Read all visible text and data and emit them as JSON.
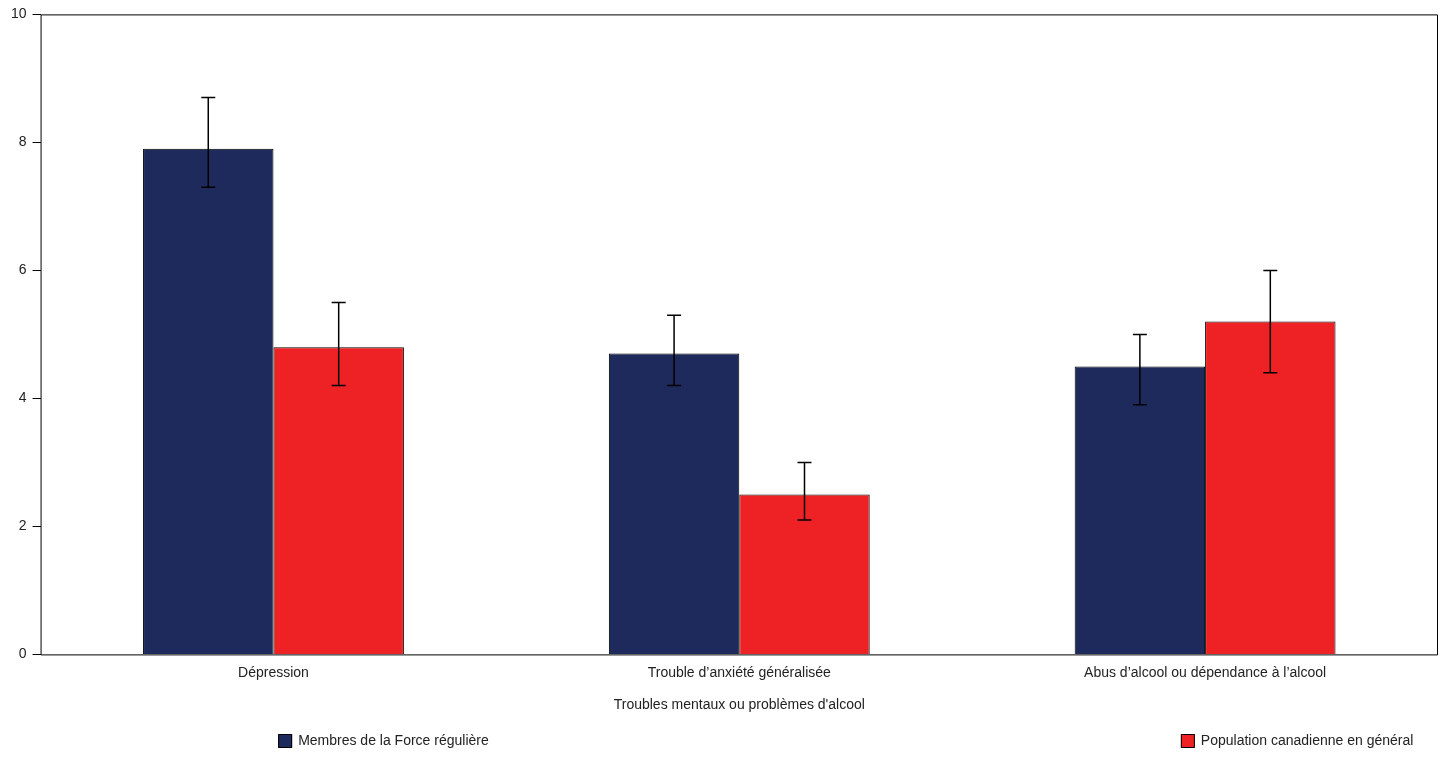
{
  "chart_data": {
    "type": "bar",
    "xlabel": "Troubles mentaux ou problèmes d'alcool",
    "categories": [
      "Dépression",
      "Trouble d’anxiété généralisée",
      "Abus d’alcool ou dépendance à l’alcool"
    ],
    "series": [
      {
        "name": "Membres de la Force régulière",
        "color": "#1f2a5c",
        "values": [
          7.9,
          4.7,
          4.5
        ],
        "errors": [
          [
            7.3,
            8.7
          ],
          [
            4.2,
            5.3
          ],
          [
            3.9,
            5.0
          ]
        ]
      },
      {
        "name": "Population canadienne en général",
        "color": "#ee2224",
        "values": [
          4.8,
          2.5,
          5.2
        ],
        "errors": [
          [
            4.2,
            5.5
          ],
          [
            2.1,
            3.0
          ],
          [
            4.4,
            6.0
          ]
        ]
      }
    ],
    "ylim": [
      0,
      10
    ],
    "yticks": [
      0,
      2,
      4,
      6,
      8,
      10
    ],
    "grid": false,
    "legend": "bottom"
  }
}
